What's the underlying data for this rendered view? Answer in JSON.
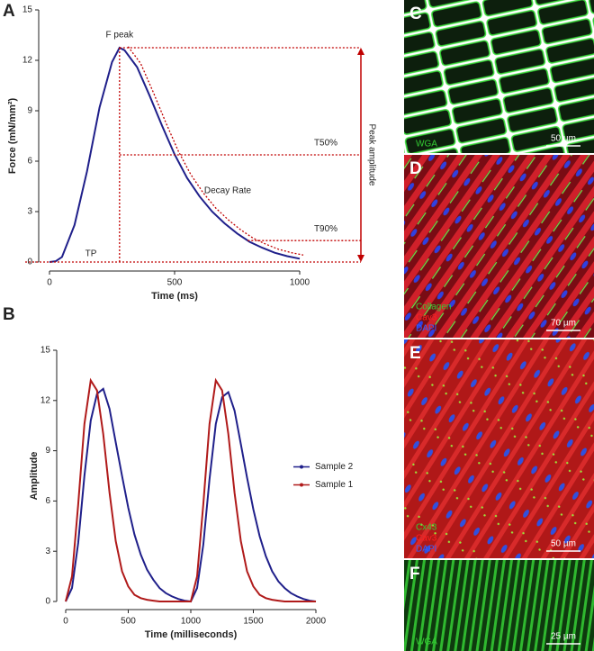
{
  "chart_data": [
    {
      "type": "line",
      "label": "A",
      "xlabel": "Time (ms)",
      "ylabel": "Force (mN/mm²)",
      "x": [
        0,
        25,
        50,
        100,
        150,
        200,
        250,
        280,
        300,
        350,
        400,
        450,
        500,
        550,
        600,
        650,
        700,
        750,
        800,
        850,
        900,
        950,
        1000
      ],
      "series": [
        {
          "color": "#1f1f8a",
          "values": [
            0,
            0.05,
            0.3,
            2.2,
            5.4,
            9.2,
            11.9,
            12.75,
            12.6,
            11.6,
            9.9,
            8.1,
            6.4,
            5.0,
            3.9,
            3.0,
            2.3,
            1.7,
            1.2,
            0.85,
            0.55,
            0.35,
            0.2
          ]
        }
      ],
      "xlim": [
        0,
        1000
      ],
      "xticks": [
        0,
        500,
        1000
      ],
      "ylim": [
        0,
        15
      ],
      "yticks": [
        0,
        3,
        6,
        9,
        12,
        15
      ],
      "annotations": {
        "peak": "F peak",
        "t50": "T50%",
        "t90": "T90%",
        "tp": "TP",
        "decay": "Decay Rate",
        "amplitude": "Peak amplitude"
      },
      "annotation_color": "#c00000"
    },
    {
      "type": "line",
      "label": "B",
      "xlabel": "Time (milliseconds)",
      "ylabel": "Amplitude",
      "x": [
        0,
        50,
        100,
        150,
        200,
        250,
        300,
        350,
        400,
        450,
        500,
        550,
        600,
        650,
        700,
        750,
        800,
        850,
        900,
        950,
        1000,
        1050,
        1100,
        1150,
        1200,
        1250,
        1300,
        1350,
        1400,
        1450,
        1500,
        1550,
        1600,
        1650,
        1700,
        1750,
        1800,
        1850,
        1900,
        1950,
        2000
      ],
      "series": [
        {
          "name": "Sample 2",
          "color": "#1f1f8a",
          "values": [
            0,
            0.8,
            3.5,
            7.5,
            10.8,
            12.4,
            12.7,
            11.5,
            9.5,
            7.5,
            5.6,
            4.0,
            2.8,
            1.9,
            1.3,
            0.8,
            0.5,
            0.3,
            0.15,
            0.05,
            0,
            0.8,
            3.4,
            7.3,
            10.6,
            12.2,
            12.5,
            11.4,
            9.4,
            7.4,
            5.5,
            3.9,
            2.7,
            1.8,
            1.2,
            0.8,
            0.5,
            0.3,
            0.15,
            0.05,
            0
          ]
        },
        {
          "name": "Sample 1",
          "color": "#b01a1a",
          "values": [
            0,
            1.5,
            5.8,
            10.6,
            13.2,
            12.6,
            10.0,
            6.5,
            3.6,
            1.8,
            0.9,
            0.4,
            0.2,
            0.1,
            0.05,
            0,
            0,
            0,
            0,
            0,
            0,
            1.5,
            5.8,
            10.6,
            13.2,
            12.6,
            10.0,
            6.5,
            3.6,
            1.8,
            0.9,
            0.4,
            0.2,
            0.1,
            0.05,
            0,
            0,
            0,
            0,
            0,
            0
          ]
        }
      ],
      "xlim": [
        0,
        2000
      ],
      "xticks": [
        0,
        500,
        1000,
        1500,
        2000
      ],
      "ylim": [
        0,
        15
      ],
      "yticks": [
        0,
        3,
        6,
        9,
        12,
        15
      ],
      "legend": "right"
    }
  ],
  "images": [
    {
      "label": "C",
      "stains": [
        {
          "text": "WGA",
          "color": "#33cc33"
        }
      ],
      "scale_bar": "50 µm"
    },
    {
      "label": "D",
      "stains": [
        {
          "text": "Collagen",
          "color": "#33cc33"
        },
        {
          "text": "Cav3",
          "color": "#ff2020"
        },
        {
          "text": "DAPI",
          "color": "#3060ff"
        }
      ],
      "scale_bar": "70 µm"
    },
    {
      "label": "E",
      "stains": [
        {
          "text": "Cx43",
          "color": "#33cc33"
        },
        {
          "text": "Cav3",
          "color": "#ff2020"
        },
        {
          "text": "DAPI",
          "color": "#3060ff"
        }
      ],
      "scale_bar": "50 µm"
    },
    {
      "label": "F",
      "stains": [
        {
          "text": "WGA",
          "color": "#33cc33"
        }
      ],
      "scale_bar": "25 µm"
    }
  ]
}
